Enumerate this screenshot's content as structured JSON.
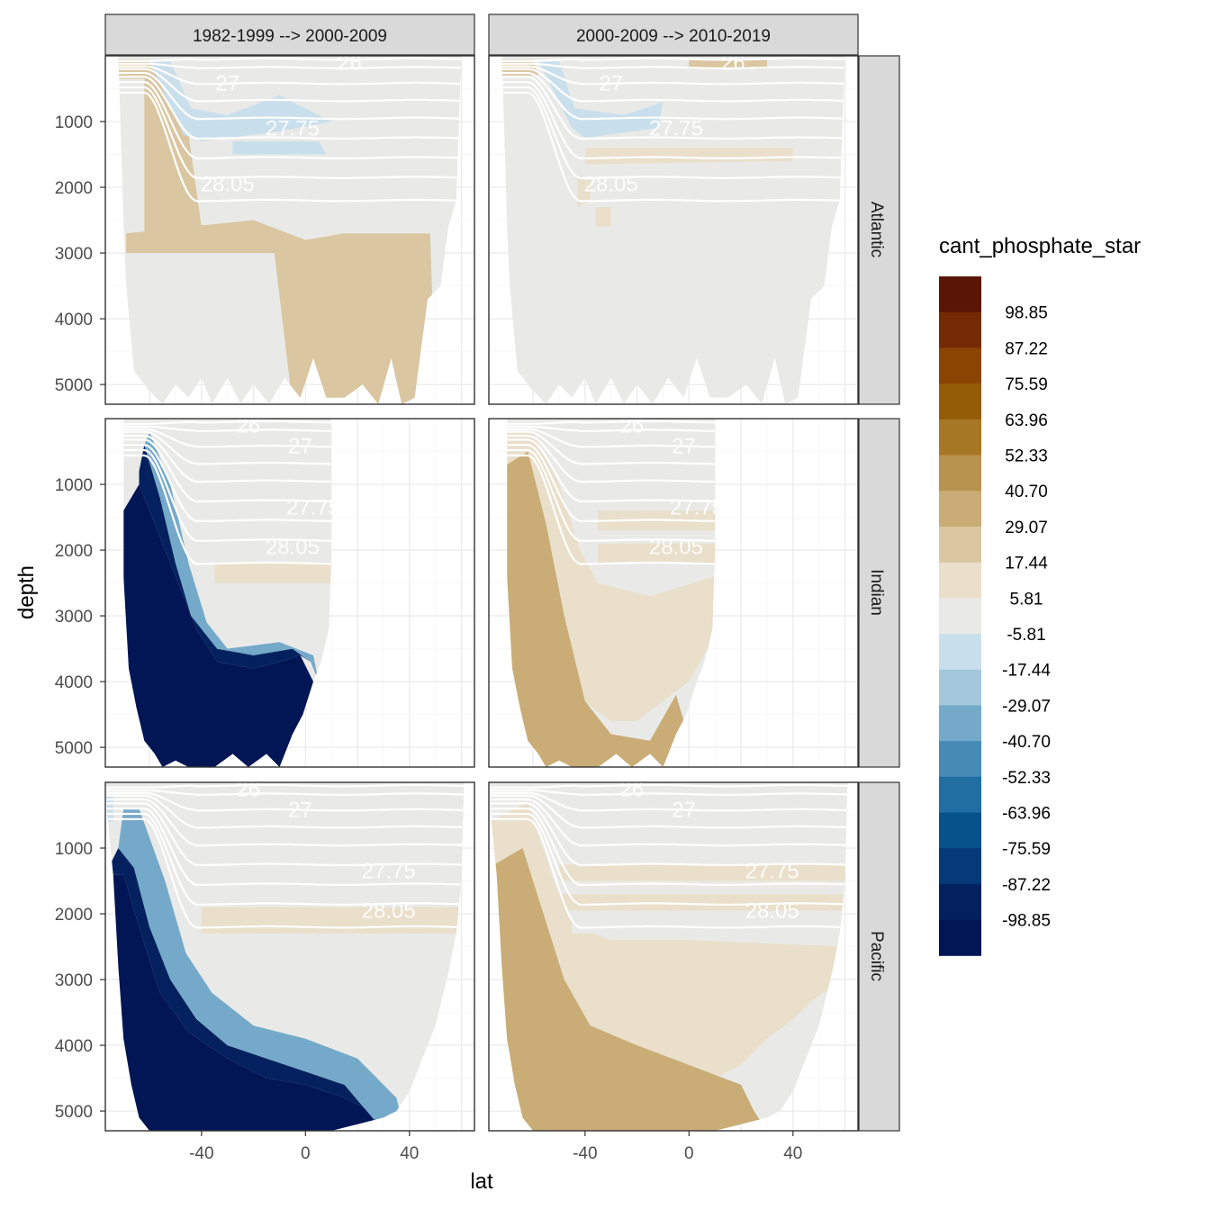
{
  "chart_data": {
    "type": "heatmap",
    "title": "",
    "xlabel": "lat",
    "ylabel": "depth",
    "x_ticks": [
      -40,
      0,
      40
    ],
    "y_ticks": [
      1000,
      2000,
      3000,
      4000,
      5000
    ],
    "xlim": [
      -77,
      65
    ],
    "ylim": [
      5300,
      0
    ],
    "y_reversed": true,
    "grid": true,
    "legend_placement": "right",
    "column_facets": [
      "1982-1999 --> 2000-2009",
      "2000-2009 --> 2010-2019"
    ],
    "row_facets": [
      "Atlantic",
      "Indian",
      "Pacific"
    ],
    "legend": {
      "title": "cant_phosphate_star",
      "labels": [
        "98.85",
        "87.22",
        "75.59",
        "63.96",
        "52.33",
        "40.70",
        "29.07",
        "17.44",
        "5.81",
        "-5.81",
        "-17.44",
        "-29.07",
        "-40.70",
        "-52.33",
        "-63.96",
        "-75.59",
        "-87.22",
        "-98.85"
      ],
      "colors": [
        "#5b1505",
        "#742b04",
        "#8a4503",
        "#945c07",
        "#a67826",
        "#b89350",
        "#c9ac76",
        "#dac6a0",
        "#e9dfca",
        "#e9eae8",
        "#cadfec",
        "#a3c8dc",
        "#74a9c9",
        "#468bb5",
        "#216fa2",
        "#08528c",
        "#053a78",
        "#03215f",
        "#021554"
      ]
    },
    "isopycnal_labels": [
      "26",
      "27",
      "27.75",
      "28.05"
    ],
    "panels": [
      {
        "row": "Atlantic",
        "column": "1982-1999 --> 2000-2009",
        "dominant": "-5.81 to 5.81",
        "range": [
          -29.07,
          17.44
        ]
      },
      {
        "row": "Atlantic",
        "column": "2000-2009 --> 2010-2019",
        "dominant": "-5.81 to 5.81",
        "range": [
          -17.44,
          17.44
        ]
      },
      {
        "row": "Indian",
        "column": "1982-1999 --> 2000-2009",
        "dominant": "-5.81 to 5.81",
        "range": [
          -98.85,
          17.44
        ]
      },
      {
        "row": "Indian",
        "column": "2000-2009 --> 2010-2019",
        "dominant": "5.81 to 17.44",
        "range": [
          -5.81,
          29.07
        ]
      },
      {
        "row": "Pacific",
        "column": "1982-1999 --> 2000-2009",
        "dominant": "-5.81 to 5.81",
        "range": [
          -98.85,
          17.44
        ]
      },
      {
        "row": "Pacific",
        "column": "2000-2009 --> 2010-2019",
        "dominant": "5.81 to 17.44",
        "range": [
          -5.81,
          40.7
        ]
      }
    ]
  }
}
